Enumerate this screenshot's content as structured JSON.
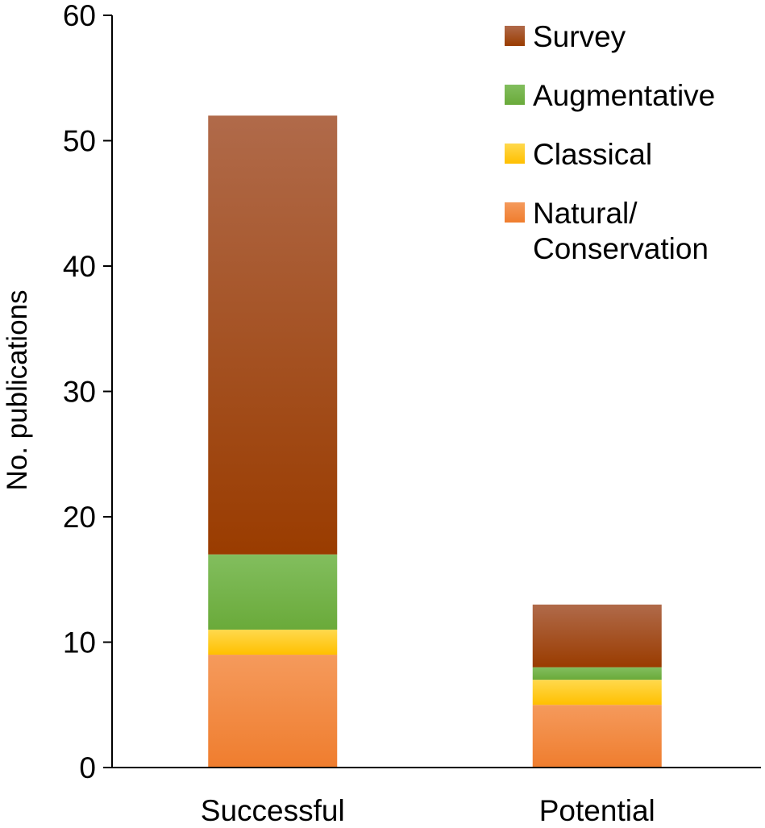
{
  "chart_data": {
    "type": "bar",
    "stacked": true,
    "categories": [
      "Successful",
      "Potential"
    ],
    "series": [
      {
        "name": "Natural/ Conservation",
        "legend_lines": [
          "Natural/",
          "Conservation"
        ],
        "values": [
          9,
          5
        ],
        "color": "#EF7D2E",
        "color_light": "#F59A5C"
      },
      {
        "name": "Classical",
        "legend_lines": [
          "Classical"
        ],
        "values": [
          2,
          2
        ],
        "color": "#FFC000",
        "color_light": "#FFD94D"
      },
      {
        "name": "Augmentative",
        "legend_lines": [
          "Augmentative"
        ],
        "values": [
          6,
          1
        ],
        "color": "#6AAA3A",
        "color_light": "#82BE5E"
      },
      {
        "name": "Survey",
        "legend_lines": [
          "Survey"
        ],
        "values": [
          35,
          5
        ],
        "color": "#9A3C00",
        "color_light": "#B06A4A"
      }
    ],
    "legend_order": [
      "Survey",
      "Augmentative",
      "Classical",
      "Natural/ Conservation"
    ],
    "ylabel": "No. publications",
    "xlabel": "",
    "title": "",
    "ylim": [
      0,
      60
    ],
    "yticks": [
      0,
      10,
      20,
      30,
      40,
      50,
      60
    ],
    "legend_position": "top-right",
    "grid": false
  }
}
